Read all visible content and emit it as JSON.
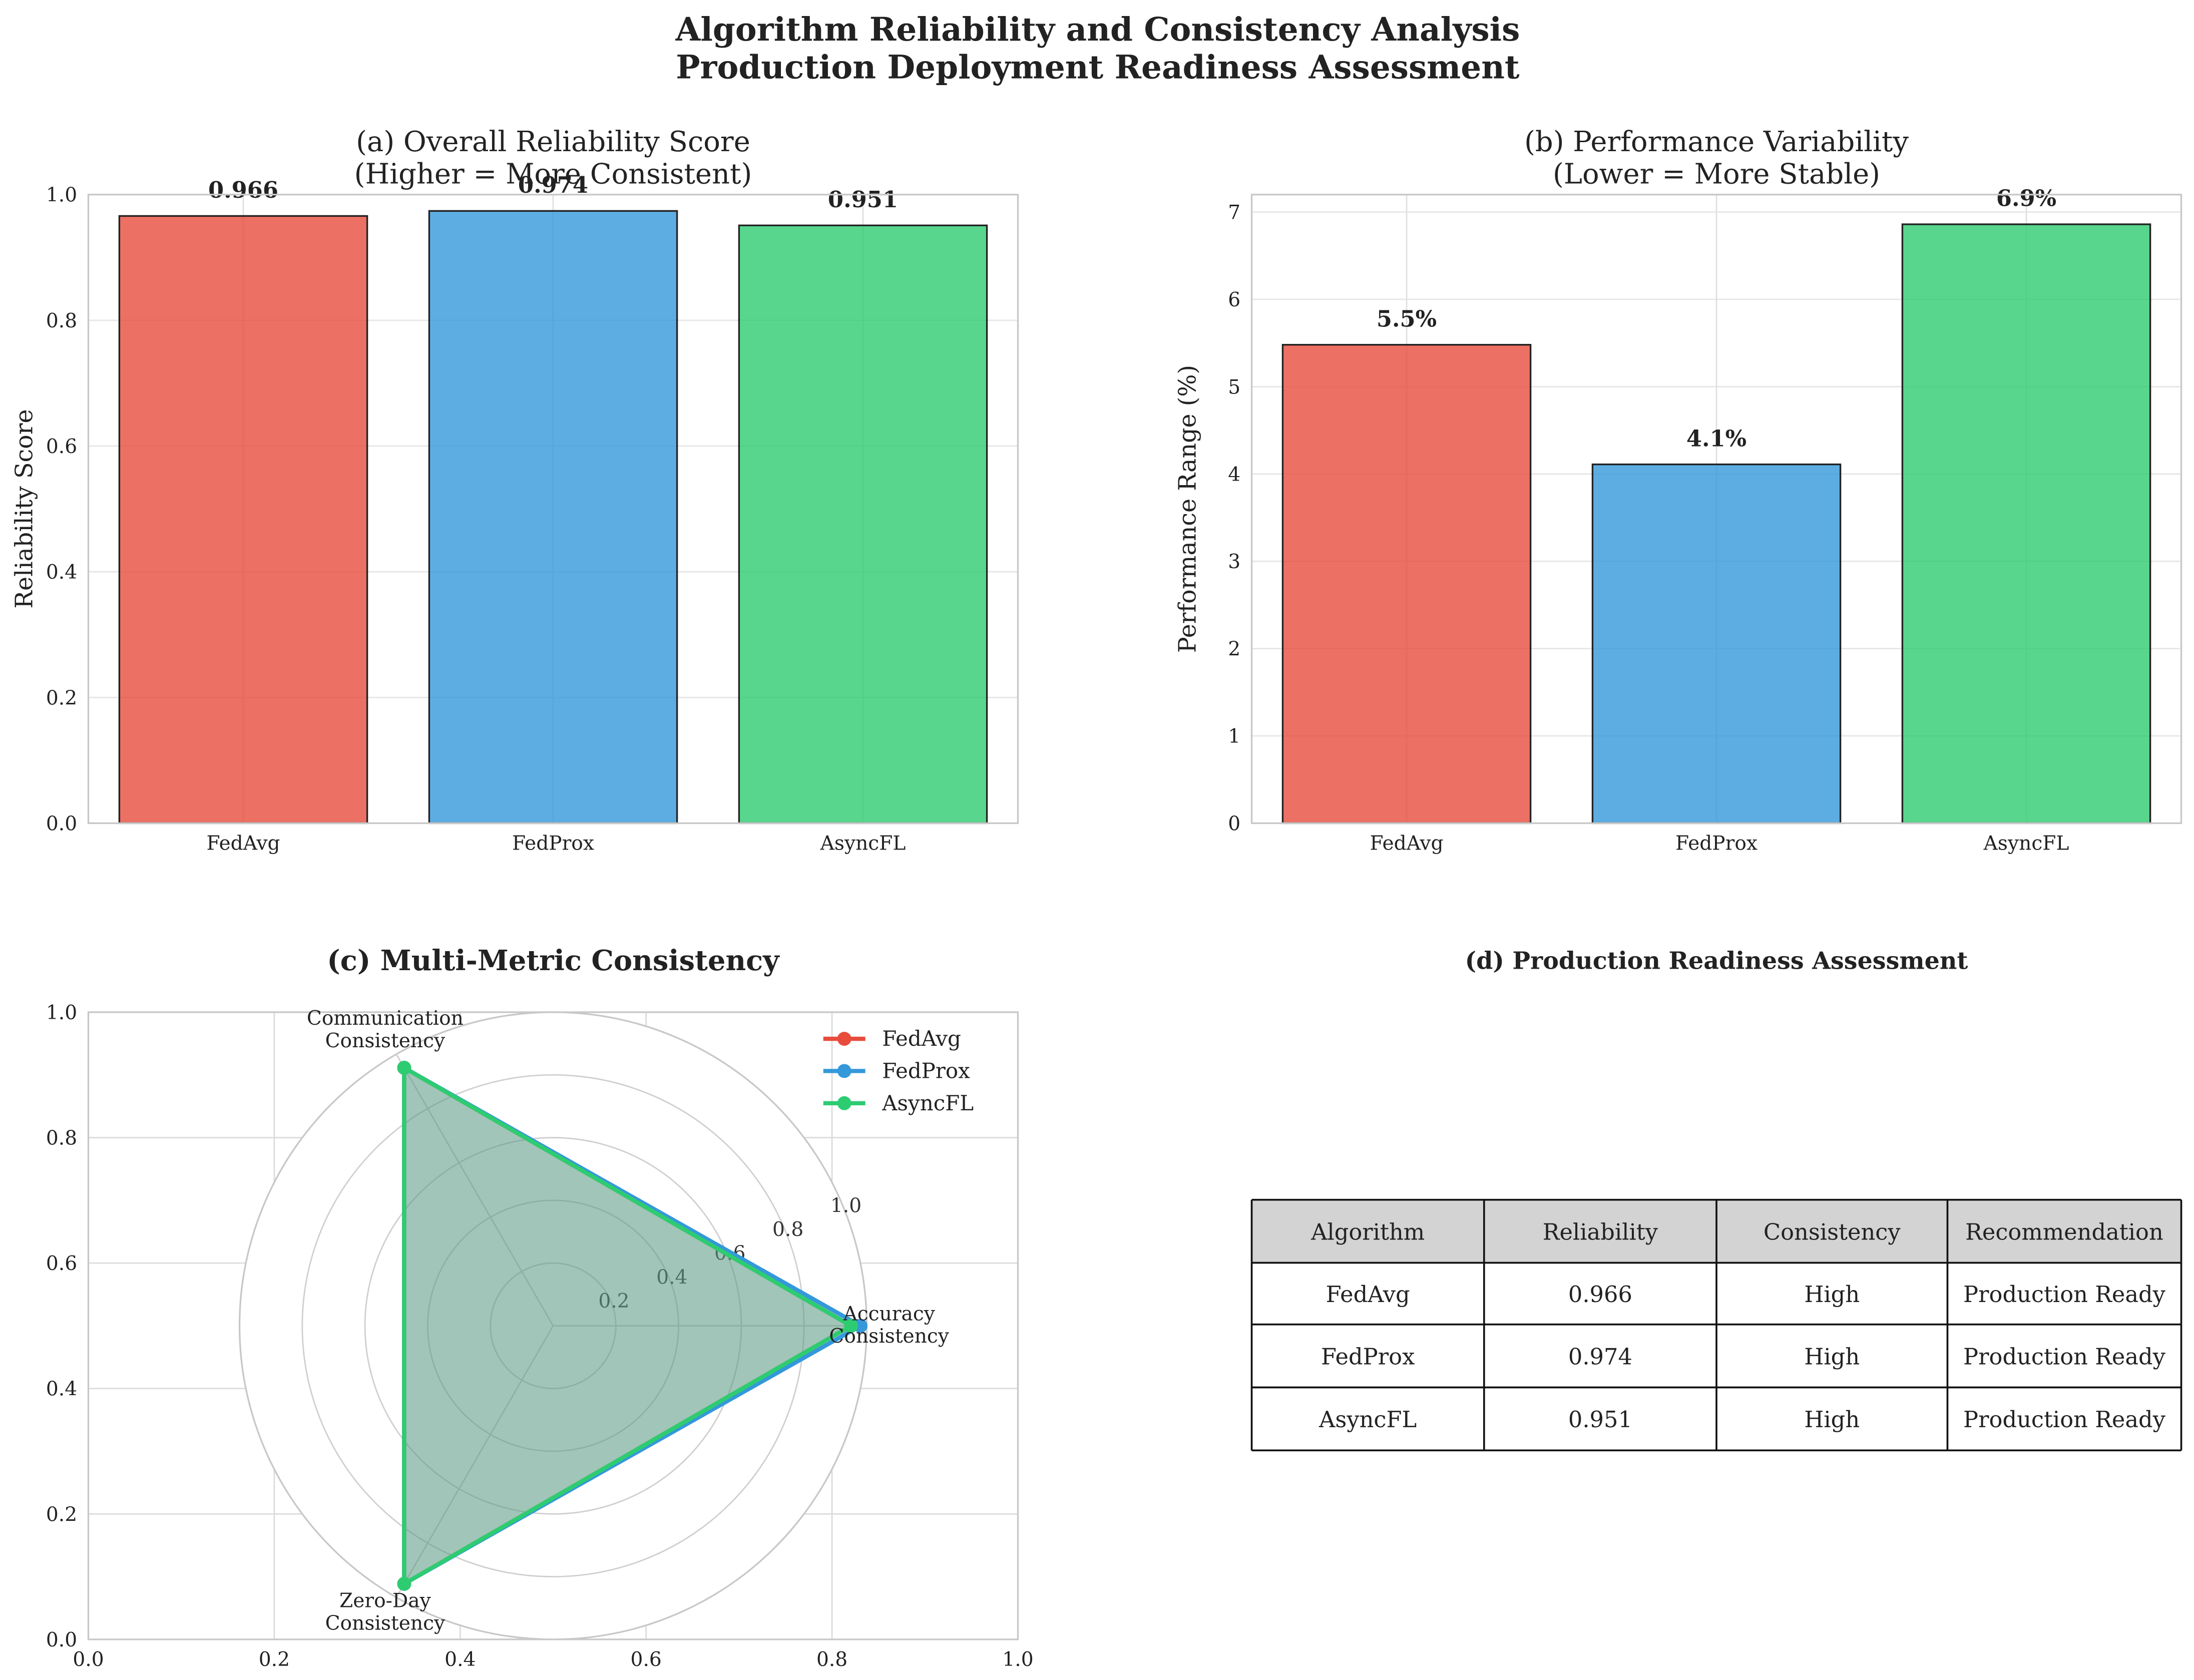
{
  "figure": {
    "title_line1": "Algorithm Reliability and Consistency Analysis",
    "title_line2": "Production Deployment Readiness Assessment"
  },
  "colors": {
    "FedAvg": "#e74c3c",
    "FedProx": "#3498db",
    "AsyncFL": "#2ecc71",
    "fill_overlap": "#8fb8a6"
  },
  "chart_data": [
    {
      "id": "a",
      "type": "bar",
      "title_line1": "(a) Overall Reliability Score",
      "title_line2": "(Higher = More Consistent)",
      "xlabel": "",
      "ylabel": "Reliability Score",
      "categories": [
        "FedAvg",
        "FedProx",
        "AsyncFL"
      ],
      "values": [
        0.966,
        0.974,
        0.951
      ],
      "value_labels": [
        "0.966",
        "0.974",
        "0.951"
      ],
      "ylim": [
        0,
        1.0
      ],
      "yticks": [
        "0.0",
        "0.2",
        "0.4",
        "0.6",
        "0.8",
        "1.0"
      ],
      "grid": true
    },
    {
      "id": "b",
      "type": "bar",
      "title_line1": "(b) Performance Variability",
      "title_line2": "(Lower = More Stable)",
      "xlabel": "",
      "ylabel": "Performance Range (%)",
      "categories": [
        "FedAvg",
        "FedProx",
        "AsyncFL"
      ],
      "values": [
        5.48,
        4.11,
        6.86
      ],
      "value_labels": [
        "5.5%",
        "4.1%",
        "6.9%"
      ],
      "ylim": [
        0,
        7.2
      ],
      "yticks": [
        "0",
        "1",
        "2",
        "3",
        "4",
        "5",
        "6",
        "7"
      ],
      "grid": true
    },
    {
      "id": "c",
      "type": "radar",
      "title": "(c) Multi-Metric Consistency",
      "axes": [
        "Accuracy\nConsistency",
        "Communication\nConsistency",
        "Zero-Day\nConsistency"
      ],
      "radial_ticks": [
        "0.2",
        "0.4",
        "0.6",
        "0.8",
        "1.0"
      ],
      "rlim": [
        0,
        1.0
      ],
      "series": [
        {
          "name": "FedAvg",
          "values": [
            0.95,
            0.95,
            0.95
          ]
        },
        {
          "name": "FedProx",
          "values": [
            0.98,
            0.95,
            0.95
          ]
        },
        {
          "name": "AsyncFL",
          "values": [
            0.95,
            0.95,
            0.95
          ]
        }
      ],
      "legend_position": "top-right",
      "background_axes": {
        "xticks": [
          "0.0",
          "0.2",
          "0.4",
          "0.6",
          "0.8",
          "1.0"
        ],
        "yticks": [
          "0.0",
          "0.2",
          "0.4",
          "0.6",
          "0.8",
          "1.0"
        ]
      }
    },
    {
      "id": "d",
      "type": "table",
      "title": "(d) Production Readiness Assessment",
      "columns": [
        "Algorithm",
        "Reliability",
        "Consistency",
        "Recommendation"
      ],
      "rows": [
        [
          "FedAvg",
          "0.966",
          "High",
          "Production Ready"
        ],
        [
          "FedProx",
          "0.974",
          "High",
          "Production Ready"
        ],
        [
          "AsyncFL",
          "0.951",
          "High",
          "Production Ready"
        ]
      ]
    }
  ]
}
